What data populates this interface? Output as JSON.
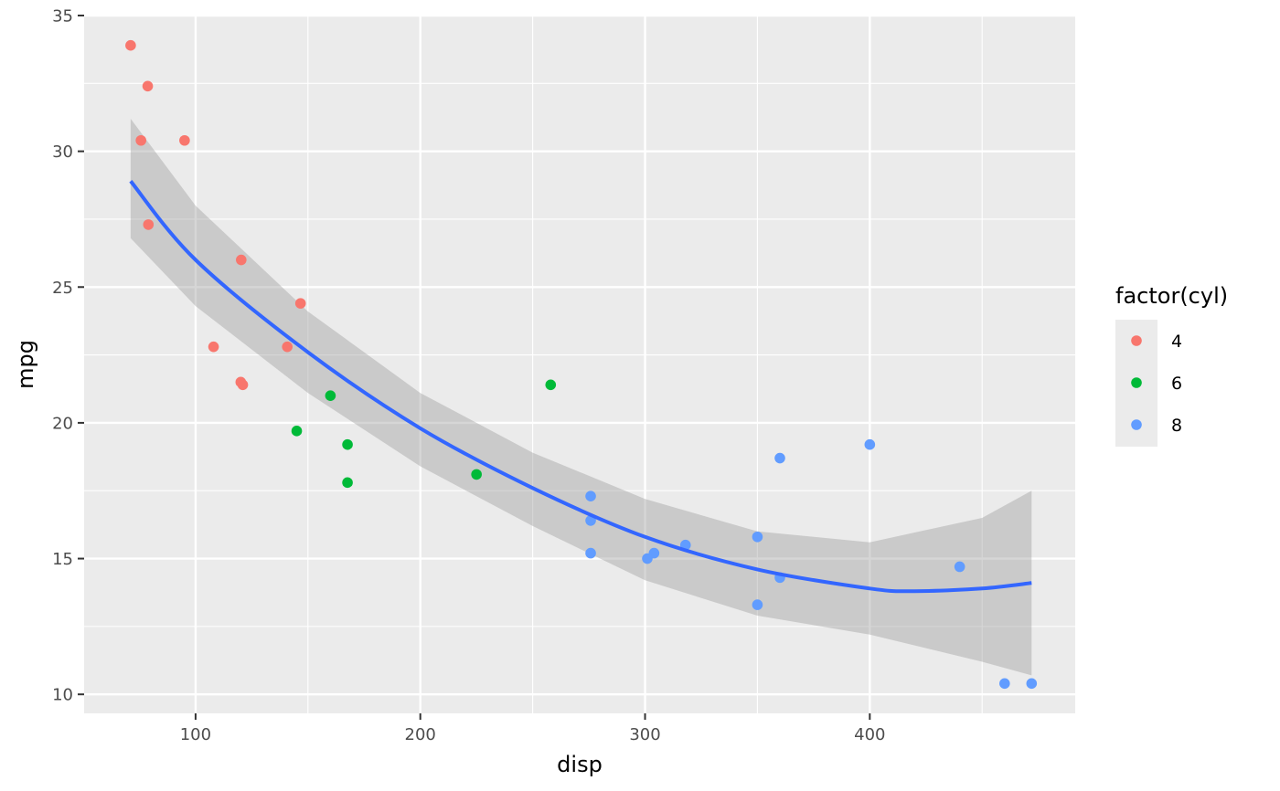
{
  "chart_data": {
    "type": "scatter",
    "title": "",
    "xlabel": "disp",
    "ylabel": "mpg",
    "xlim": [
      50.4,
      491.4
    ],
    "ylim": [
      9.3,
      35.0
    ],
    "x_ticks": [
      100,
      200,
      300,
      400
    ],
    "x_tick_labels": [
      "100",
      "200",
      "300",
      "400"
    ],
    "y_ticks": [
      10,
      15,
      20,
      25,
      30,
      35
    ],
    "y_tick_labels": [
      "10",
      "15",
      "20",
      "25",
      "30",
      "35"
    ],
    "grid": true,
    "legend": {
      "title": "factor(cyl)",
      "position": "right",
      "entries": [
        {
          "label": "4",
          "color": "#F8766D"
        },
        {
          "label": "6",
          "color": "#00BA38"
        },
        {
          "label": "8",
          "color": "#619CFF"
        }
      ]
    },
    "series": [
      {
        "name": "4",
        "color": "#F8766D",
        "points": [
          [
            71.1,
            33.9
          ],
          [
            78.7,
            32.4
          ],
          [
            75.7,
            30.4
          ],
          [
            95.1,
            30.4
          ],
          [
            79.0,
            27.3
          ],
          [
            120.3,
            26.0
          ],
          [
            146.7,
            24.4
          ],
          [
            108.0,
            22.8
          ],
          [
            140.8,
            22.8
          ],
          [
            120.1,
            21.5
          ],
          [
            121.0,
            21.4
          ]
        ]
      },
      {
        "name": "6",
        "color": "#00BA38",
        "points": [
          [
            258.0,
            21.4
          ],
          [
            160.0,
            21.0
          ],
          [
            145.0,
            19.7
          ],
          [
            167.6,
            19.2
          ],
          [
            225.0,
            18.1
          ],
          [
            167.6,
            17.8
          ]
        ]
      },
      {
        "name": "8",
        "color": "#619CFF",
        "points": [
          [
            400.0,
            19.2
          ],
          [
            360.0,
            18.7
          ],
          [
            275.8,
            17.3
          ],
          [
            275.8,
            16.4
          ],
          [
            350.0,
            15.8
          ],
          [
            318.0,
            15.5
          ],
          [
            304.0,
            15.2
          ],
          [
            275.8,
            15.2
          ],
          [
            301.0,
            15.0
          ],
          [
            440.0,
            14.7
          ],
          [
            360.0,
            14.3
          ],
          [
            350.0,
            13.3
          ],
          [
            460.0,
            10.4
          ],
          [
            472.0,
            10.4
          ]
        ]
      }
    ],
    "smooth": {
      "method": "quadratic fit with confidence band",
      "color": "#3366FF",
      "band_color": "#999999",
      "fit": [
        [
          71.1,
          28.9
        ],
        [
          100.0,
          26.0
        ],
        [
          150.0,
          22.6
        ],
        [
          200.0,
          19.8
        ],
        [
          250.0,
          17.6
        ],
        [
          300.0,
          15.8
        ],
        [
          350.0,
          14.6
        ],
        [
          400.0,
          13.9
        ],
        [
          420.0,
          13.8
        ],
        [
          450.0,
          13.9
        ],
        [
          472.0,
          14.1
        ]
      ],
      "upper": [
        [
          71.1,
          31.2
        ],
        [
          100.0,
          28.0
        ],
        [
          150.0,
          24.1
        ],
        [
          200.0,
          21.1
        ],
        [
          250.0,
          18.9
        ],
        [
          300.0,
          17.2
        ],
        [
          350.0,
          16.0
        ],
        [
          400.0,
          15.6
        ],
        [
          450.0,
          16.5
        ],
        [
          472.0,
          17.5
        ]
      ],
      "lower": [
        [
          71.1,
          26.8
        ],
        [
          100.0,
          24.3
        ],
        [
          150.0,
          21.1
        ],
        [
          200.0,
          18.4
        ],
        [
          250.0,
          16.2
        ],
        [
          300.0,
          14.2
        ],
        [
          350.0,
          12.9
        ],
        [
          400.0,
          12.2
        ],
        [
          450.0,
          11.2
        ],
        [
          472.0,
          10.7
        ]
      ]
    }
  }
}
